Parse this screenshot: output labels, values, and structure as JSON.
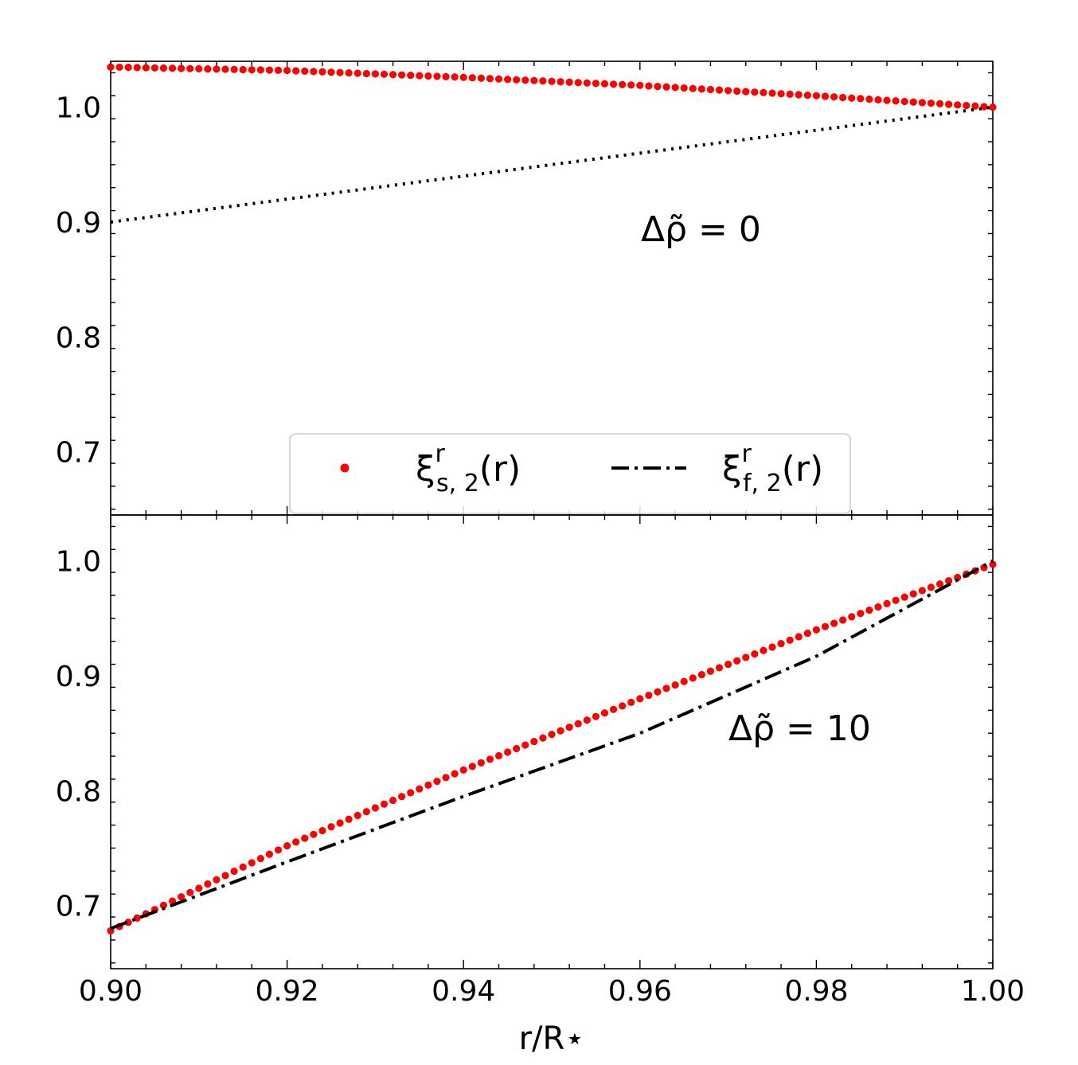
{
  "chart_data": [
    {
      "type": "scatter",
      "panel": "top",
      "annotation": "Δρ̃ = 0",
      "xlim": [
        0.9,
        1.0
      ],
      "ylim": [
        0.645,
        1.04
      ],
      "yticks": [
        "0.7",
        "0.8",
        "0.9",
        "1.0"
      ],
      "grid": false,
      "legend": {
        "placement": "bottom-center",
        "entries": [
          {
            "symbol": "ξ",
            "sub": "s, 2",
            "sup": "r",
            "suffix": "(r)",
            "style": "red-dots"
          },
          {
            "symbol": "ξ",
            "sub": "f, 2",
            "sup": "r",
            "suffix": "(r)",
            "style": "black-dashdot"
          }
        ]
      },
      "series": [
        {
          "color": "#ff0000",
          "style": "dots",
          "x": [
            0.9,
            0.92,
            0.94,
            0.96,
            0.98,
            1.0
          ],
          "y": [
            1.035,
            1.032,
            1.026,
            1.019,
            1.01,
            1.0
          ]
        },
        {
          "color": "#000000",
          "style": "dotted",
          "x": [
            0.9,
            1.0
          ],
          "y": [
            0.9,
            1.0
          ]
        }
      ]
    },
    {
      "type": "line",
      "panel": "bottom",
      "annotation": "Δρ̃ = 10",
      "xlim": [
        0.9,
        1.0
      ],
      "ylim": [
        0.645,
        1.04
      ],
      "xticks": [
        "0.90",
        "0.92",
        "0.94",
        "0.96",
        "0.98",
        "1.00"
      ],
      "yticks": [
        "0.7",
        "0.8",
        "0.9",
        "1.0"
      ],
      "xlabel": "r/R⋆",
      "grid": false,
      "series": [
        {
          "color": "#ff0000",
          "style": "dots",
          "x": [
            0.9,
            0.92,
            0.94,
            0.96,
            0.98,
            1.0
          ],
          "y": [
            0.678,
            0.752,
            0.818,
            0.88,
            0.94,
            0.997
          ]
        },
        {
          "color": "#000000",
          "style": "dashdot",
          "x": [
            0.9,
            0.92,
            0.94,
            0.96,
            0.98,
            1.0
          ],
          "y": [
            0.68,
            0.738,
            0.795,
            0.85,
            0.917,
            1.0
          ]
        }
      ]
    }
  ]
}
